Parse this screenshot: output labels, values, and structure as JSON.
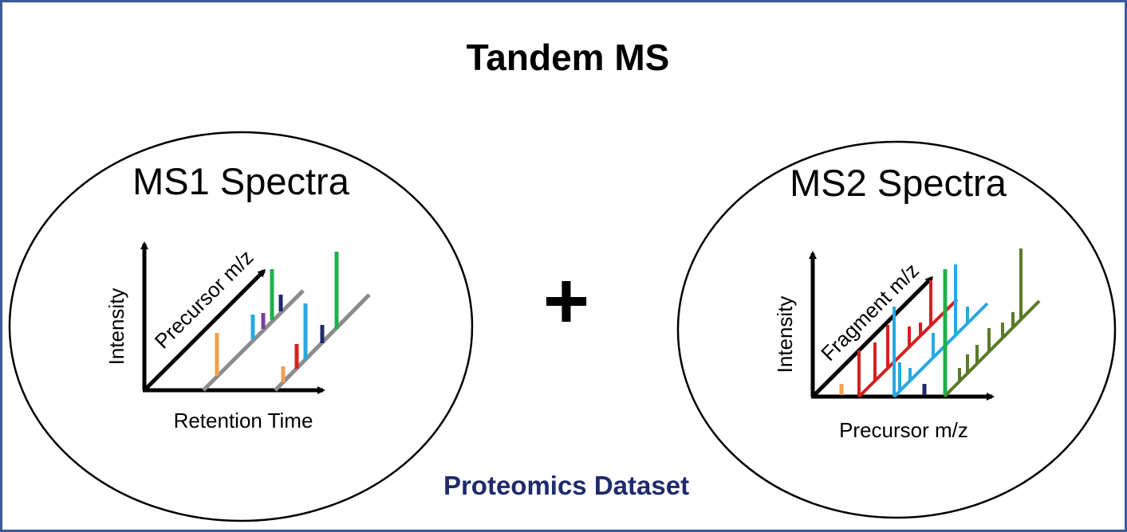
{
  "title": "Tandem MS",
  "left_panel": {
    "title": "MS1 Spectra",
    "y_axis_label": "Intensity",
    "diagonal_axis_label": "Precursor m/z",
    "x_axis_label": "Retention Time"
  },
  "operator": "+",
  "right_panel": {
    "title": "MS2 Spectra",
    "y_axis_label": "Intensity",
    "diagonal_axis_label": "Fragment m/z",
    "x_axis_label": "Precursor m/z"
  },
  "footer": "Proteomics Dataset",
  "colors": {
    "frame_border": "#3b5a9a",
    "title": "#000000",
    "footer": "#1f2a6b",
    "axis": "#000000",
    "gray_rail": "#8c8c8c",
    "orange": "#f0a050",
    "blue": "#29a8e0",
    "purple": "#7a3ea0",
    "green": "#1fb04a",
    "navy": "#1f2a6b",
    "red": "#d42020",
    "olive": "#5a7a2a"
  },
  "icons": {
    "axis_arrow": "arrowhead"
  }
}
